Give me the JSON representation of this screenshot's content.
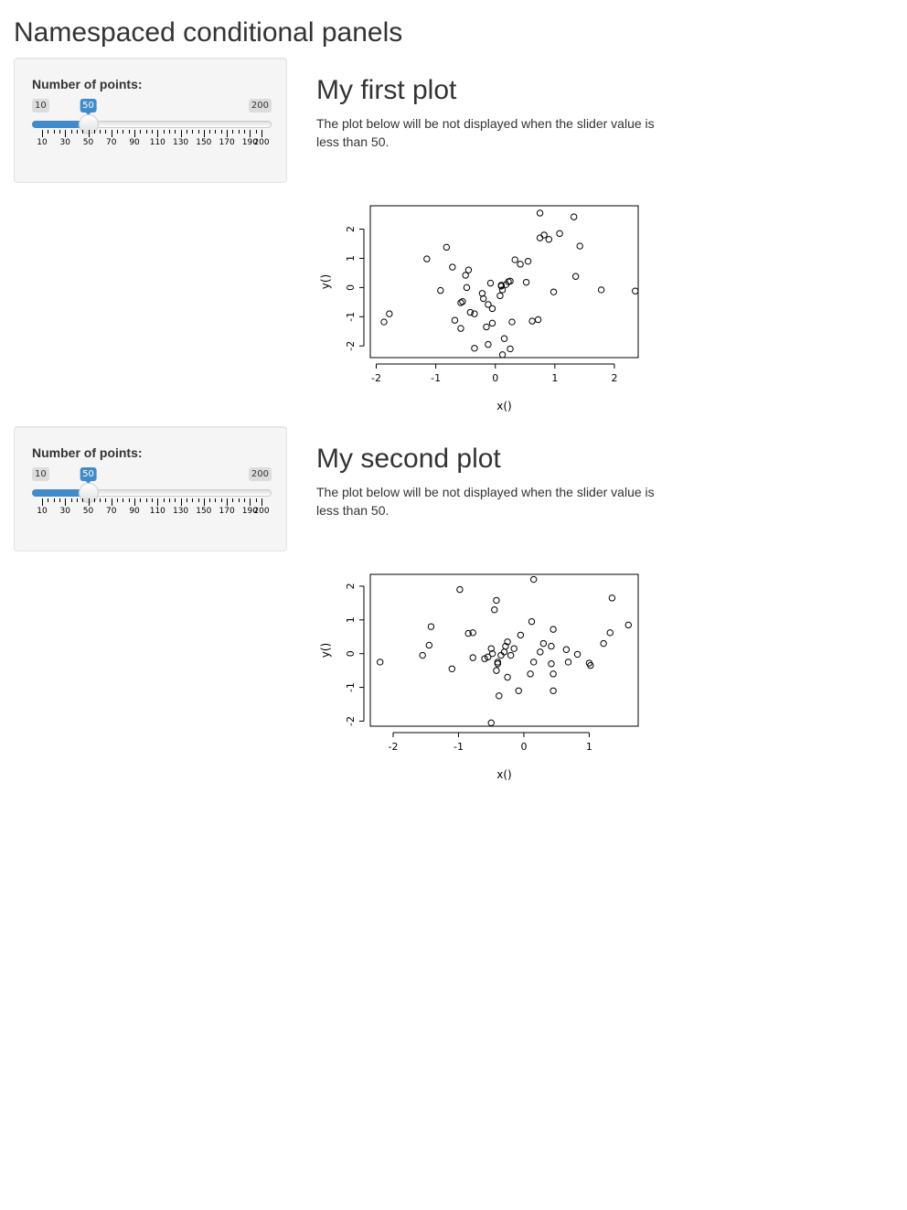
{
  "page": {
    "title": "Namespaced conditional panels"
  },
  "modules": [
    {
      "sidebar": {
        "label": "Number of points:",
        "slider": {
          "min": 10,
          "max": 200,
          "value": 50,
          "min_label": "10",
          "max_label": "200",
          "value_label": "50",
          "grid_labels": [
            "10",
            "30",
            "50",
            "70",
            "90",
            "110",
            "130",
            "150",
            "170",
            "190",
            "200"
          ]
        }
      },
      "main": {
        "title": "My first plot",
        "description": "The plot below will be not displayed when the slider value is less than 50."
      },
      "chart_data": {
        "type": "scatter",
        "title": "",
        "xlabel": "x()",
        "ylabel": "y()",
        "xlim": [
          -2.1,
          2.4
        ],
        "ylim": [
          -2.4,
          2.8
        ],
        "xticks": [
          "-2",
          "-1",
          "0",
          "1",
          "2"
        ],
        "yticks": [
          "-2",
          "-1",
          "0",
          "1",
          "2"
        ],
        "series": [
          {
            "x": [
              -1.87,
              -1.78,
              -1.15,
              -0.82,
              -0.72,
              -0.68,
              -0.92,
              -0.5,
              -0.48,
              -0.45,
              -0.55,
              -0.58,
              -0.42,
              -0.35,
              -0.22,
              -0.2,
              -0.12,
              -0.08,
              -0.05,
              0.08,
              0.12,
              0.1,
              0.1,
              0.18,
              0.22,
              0.25,
              0.33,
              0.42,
              0.52,
              -0.58,
              -0.15,
              -0.05,
              -0.12,
              0.15,
              0.28,
              0.12,
              0.25,
              -0.35,
              0.62,
              0.72,
              0.82,
              0.75,
              0.9,
              1.08,
              0.75,
              1.32,
              1.42,
              1.35,
              0.98,
              1.78,
              2.35,
              0.55
            ],
            "y": [
              -1.18,
              -0.9,
              0.98,
              1.38,
              0.7,
              -1.12,
              -0.1,
              0.42,
              0.0,
              0.6,
              -0.48,
              -0.52,
              -0.85,
              -0.9,
              -0.2,
              -0.38,
              -0.58,
              0.15,
              -0.72,
              -0.28,
              -0.08,
              0.05,
              0.08,
              0.1,
              0.2,
              0.22,
              0.95,
              0.8,
              0.18,
              -1.4,
              -1.35,
              -1.22,
              -1.95,
              -1.75,
              -1.18,
              -2.3,
              -2.1,
              -2.08,
              -1.15,
              -1.1,
              1.8,
              2.55,
              1.65,
              1.85,
              1.7,
              2.42,
              1.42,
              0.38,
              -0.15,
              -0.08,
              -0.12,
              0.9
            ]
          }
        ]
      }
    },
    {
      "sidebar": {
        "label": "Number of points:",
        "slider": {
          "min": 10,
          "max": 200,
          "value": 50,
          "min_label": "10",
          "max_label": "200",
          "value_label": "50",
          "grid_labels": [
            "10",
            "30",
            "50",
            "70",
            "90",
            "110",
            "130",
            "150",
            "170",
            "190",
            "200"
          ]
        }
      },
      "main": {
        "title": "My second plot",
        "description": "The plot below will be not displayed when the slider value is less than 50."
      },
      "chart_data": {
        "type": "scatter",
        "title": "",
        "xlabel": "x()",
        "ylabel": "y()",
        "xlim": [
          -2.35,
          1.75
        ],
        "ylim": [
          -2.15,
          2.35
        ],
        "xticks": [
          "-2",
          "-1",
          "0",
          "1"
        ],
        "yticks": [
          "-2",
          "-1",
          "0",
          "1",
          "2"
        ],
        "series": [
          {
            "x": [
              -2.2,
              -1.55,
              -1.45,
              -1.42,
              -1.1,
              -0.98,
              -0.85,
              -0.78,
              -0.78,
              -0.6,
              -0.55,
              -0.5,
              -0.48,
              -0.45,
              -0.42,
              -0.4,
              -0.4,
              -0.38,
              -0.35,
              -0.3,
              -0.28,
              -0.25,
              -0.25,
              -0.2,
              -0.15,
              -0.08,
              -0.05,
              0.1,
              0.12,
              0.15,
              0.15,
              0.25,
              0.3,
              0.42,
              0.42,
              0.45,
              0.45,
              0.45,
              0.65,
              0.68,
              0.82,
              1.0,
              1.02,
              1.22,
              1.32,
              1.35,
              1.6,
              -0.5,
              -0.42
            ],
            "y": [
              -0.25,
              -0.05,
              0.25,
              0.8,
              -0.45,
              1.9,
              0.6,
              0.62,
              -0.12,
              -0.15,
              -0.1,
              0.15,
              0.0,
              1.3,
              1.58,
              -0.25,
              -0.3,
              -1.25,
              -0.05,
              0.05,
              0.22,
              -0.7,
              0.35,
              -0.05,
              0.15,
              -1.1,
              0.55,
              -0.6,
              0.95,
              -0.25,
              2.2,
              0.05,
              0.3,
              -0.3,
              0.22,
              -0.6,
              -1.1,
              0.72,
              0.12,
              -0.25,
              -0.02,
              -0.28,
              -0.35,
              0.3,
              0.62,
              1.65,
              0.85,
              -2.05,
              -0.5
            ]
          }
        ]
      }
    }
  ]
}
